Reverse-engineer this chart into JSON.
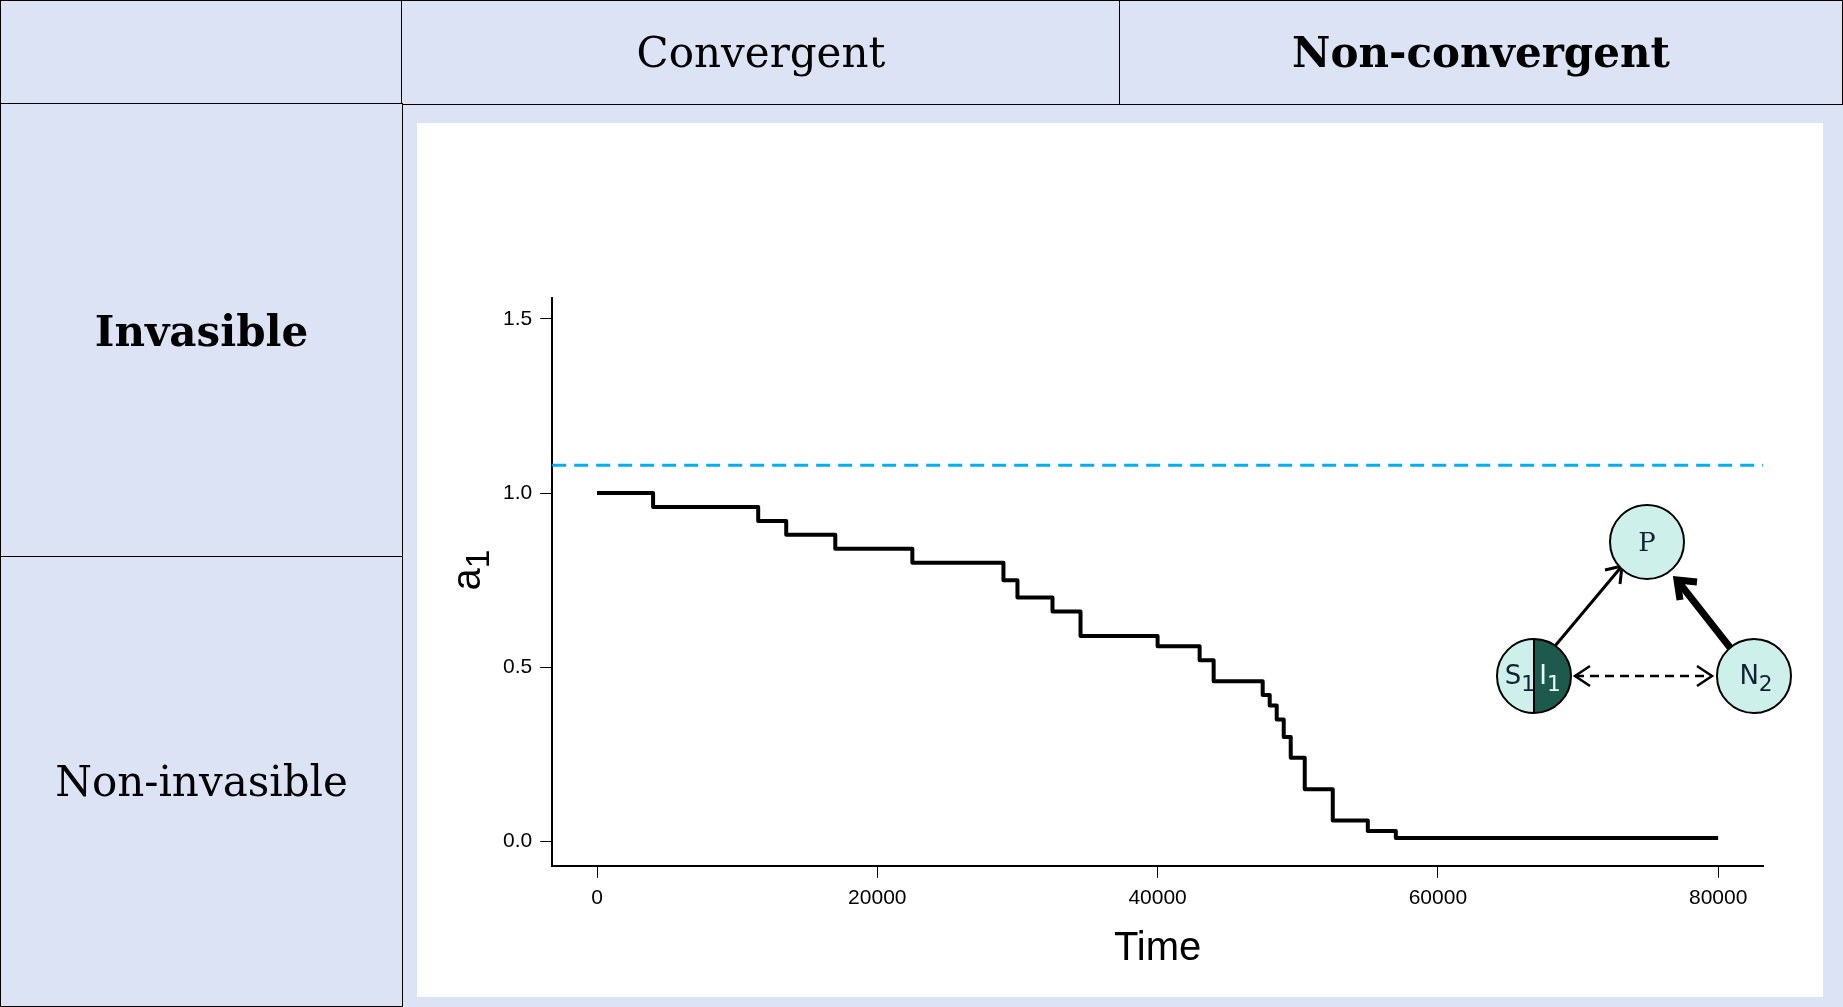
{
  "chart_data": {
    "type": "step",
    "xlabel": "Time",
    "ylabel": "a$_{1}$",
    "x": [
      0,
      4000,
      11500,
      13500,
      17000,
      22500,
      29000,
      30000,
      32500,
      34500,
      40000,
      43000,
      44000,
      47500,
      48000,
      48500,
      49000,
      49500,
      50500,
      52500,
      55000,
      57000,
      80000
    ],
    "series": [
      {
        "color": "#000000",
        "values": [
          1.0,
          0.96,
          0.92,
          0.88,
          0.84,
          0.8,
          0.75,
          0.7,
          0.66,
          0.59,
          0.56,
          0.52,
          0.46,
          0.42,
          0.39,
          0.35,
          0.3,
          0.24,
          0.15,
          0.06,
          0.03,
          0.01,
          0.01
        ]
      }
    ],
    "xlim": [
      -3200,
      83200
    ],
    "xticks": [
      0,
      20000,
      40000,
      60000,
      80000
    ],
    "ylim": [
      -0.07,
      1.56
    ],
    "yticks": [
      {
        "value": 0,
        "label": "0.0"
      },
      {
        "value": 0.5,
        "label": "0.5"
      },
      {
        "value": 1,
        "label": "1.0"
      },
      {
        "value": 1.5,
        "label": "1.5"
      }
    ],
    "ref_lines": [
      {
        "axis": "y",
        "value": 1.08,
        "color": "#00b0f0",
        "line_style": "dashed"
      }
    ],
    "grid": false,
    "legend": false,
    "marker": "none",
    "annotations": [
      "Convergent",
      "Non-convergent",
      "Invasible",
      "Non-invasible",
      "P",
      "S$_{1}$",
      "I$_{1}$",
      "N$_{2}$"
    ]
  }
}
